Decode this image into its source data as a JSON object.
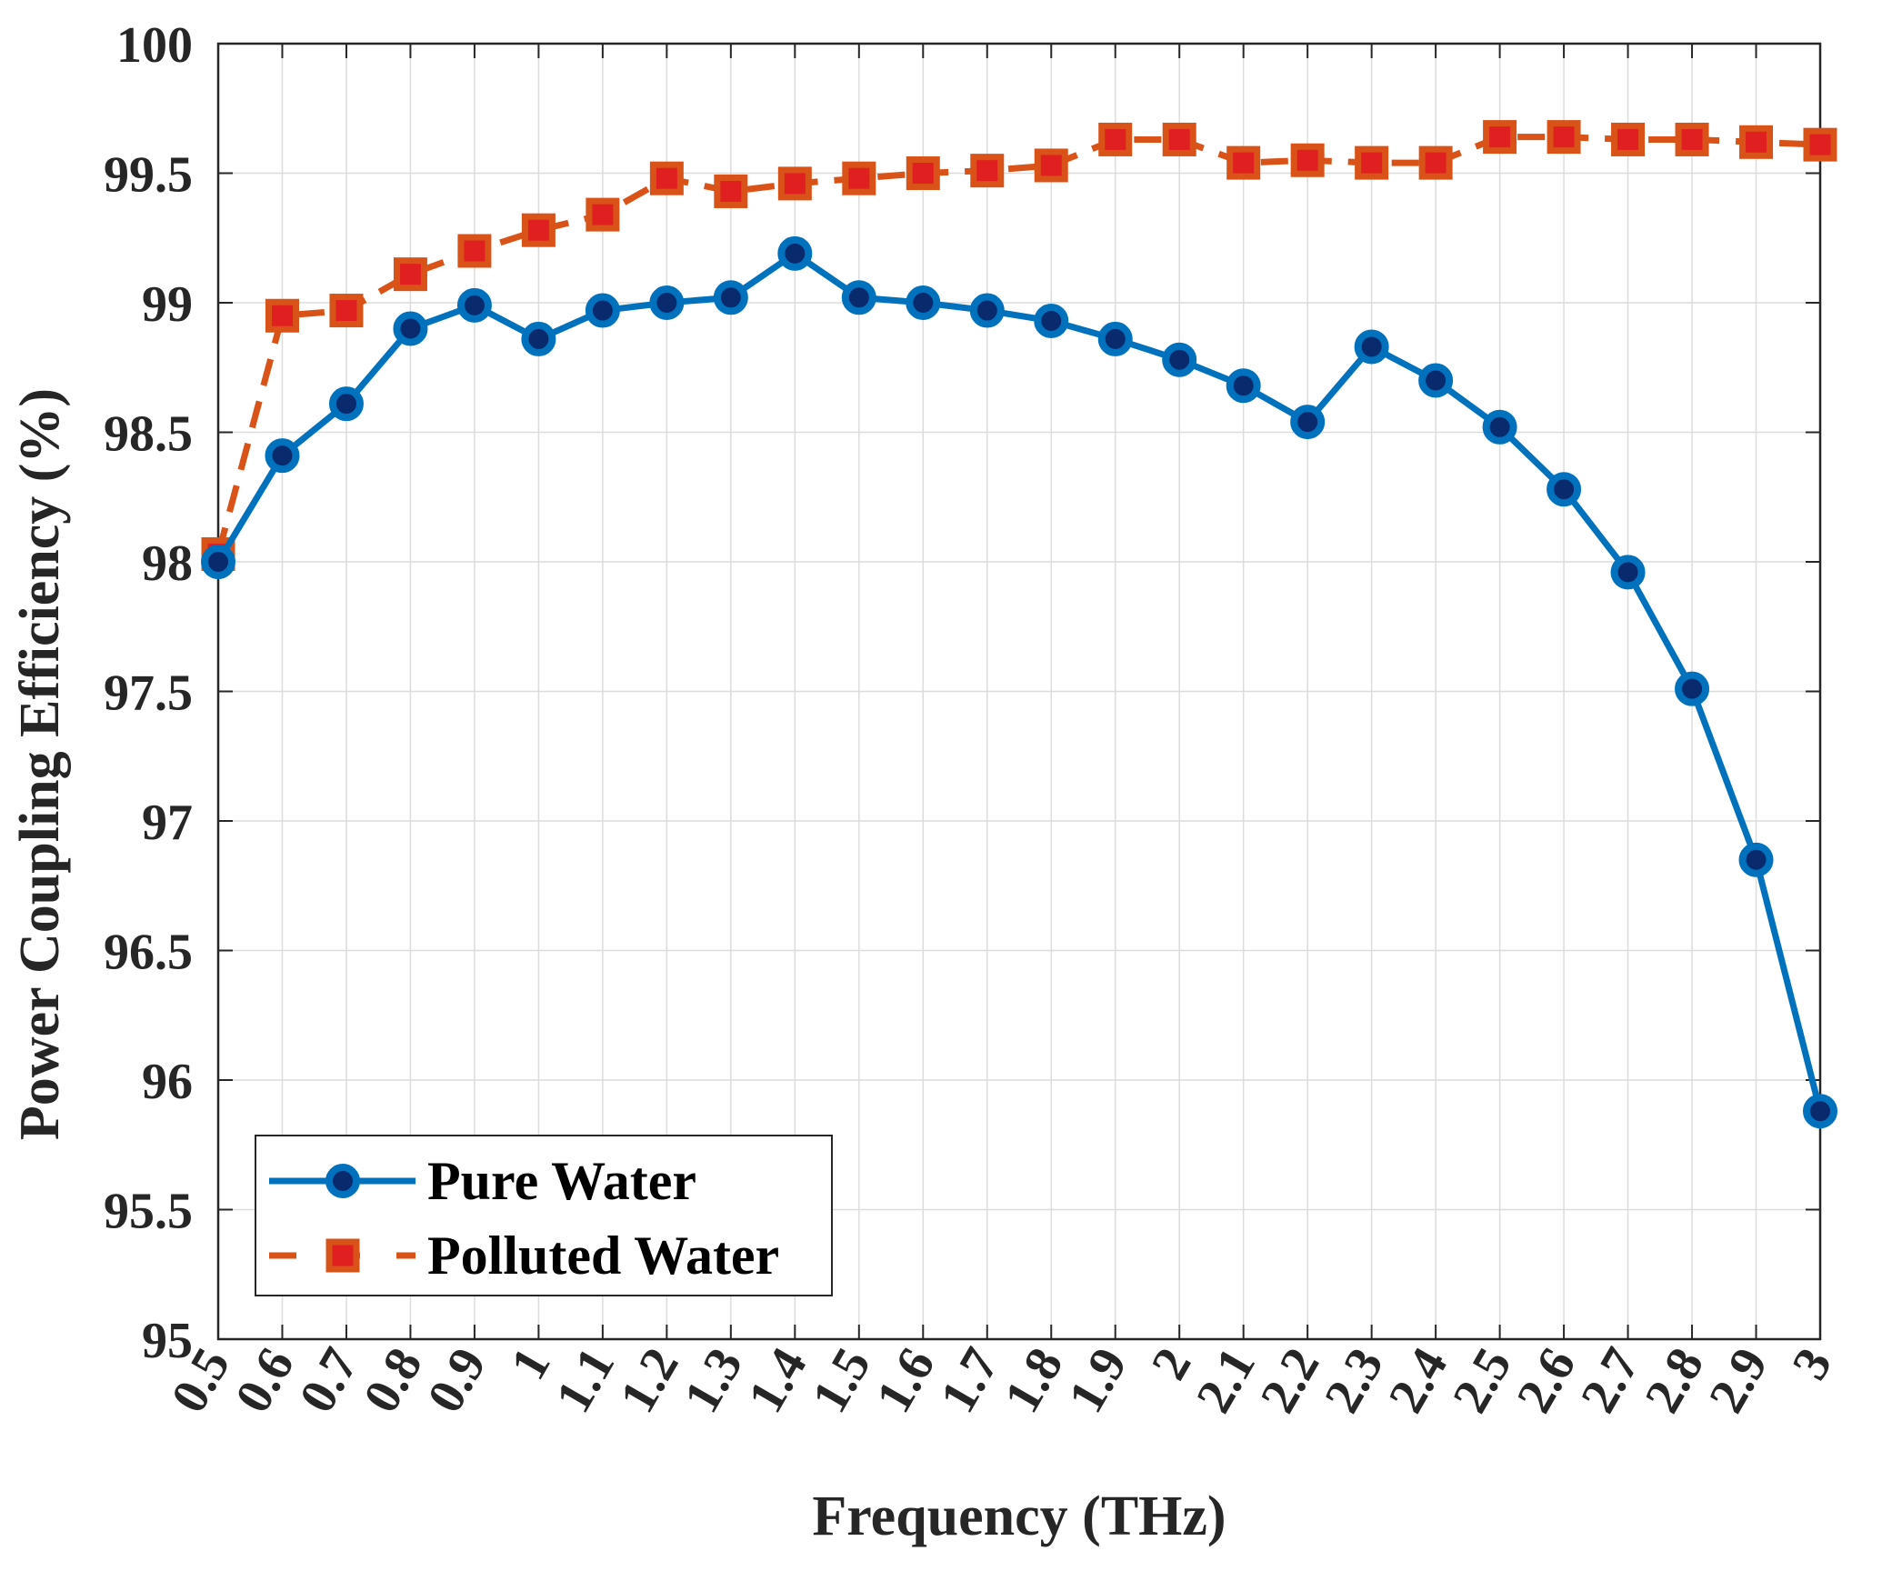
{
  "chart_data": {
    "type": "line",
    "title": "",
    "xlabel": "Frequency (THz)",
    "ylabel": "Power Coupling Efficiency (%)",
    "xlim": [
      0.5,
      3.0
    ],
    "ylim": [
      95,
      100
    ],
    "grid": true,
    "legend_position": "bottom-left",
    "xticks": [
      0.5,
      0.6,
      0.7,
      0.8,
      0.9,
      1.0,
      1.1,
      1.2,
      1.3,
      1.4,
      1.5,
      1.6,
      1.7,
      1.8,
      1.9,
      2.0,
      2.1,
      2.2,
      2.3,
      2.4,
      2.5,
      2.6,
      2.7,
      2.8,
      2.9,
      3.0
    ],
    "xtick_labels": [
      "0.5",
      "0.6",
      "0.7",
      "0.8",
      "0.9",
      "1",
      "1.1",
      "1.2",
      "1.3",
      "1.4",
      "1.5",
      "1.6",
      "1.7",
      "1.8",
      "1.9",
      "2",
      "2.1",
      "2.2",
      "2.3",
      "2.4",
      "2.5",
      "2.6",
      "2.7",
      "2.8",
      "2.9",
      "3"
    ],
    "yticks": [
      95,
      95.5,
      96,
      96.5,
      97,
      97.5,
      98,
      98.5,
      99,
      99.5,
      100
    ],
    "ytick_labels": [
      "95",
      "95.5",
      "96",
      "96.5",
      "97",
      "97.5",
      "98",
      "98.5",
      "99",
      "99.5",
      "100"
    ],
    "x": [
      0.5,
      0.6,
      0.7,
      0.8,
      0.9,
      1.0,
      1.1,
      1.2,
      1.3,
      1.4,
      1.5,
      1.6,
      1.7,
      1.8,
      1.9,
      2.0,
      2.1,
      2.2,
      2.3,
      2.4,
      2.5,
      2.6,
      2.7,
      2.8,
      2.9,
      3.0
    ],
    "series": [
      {
        "name": "Pure Water",
        "color": "#0072BD",
        "line_style": "solid",
        "marker": "circle",
        "values": [
          98.0,
          98.41,
          98.61,
          98.9,
          98.99,
          98.86,
          98.97,
          99.0,
          99.02,
          99.19,
          99.02,
          99.0,
          98.97,
          98.93,
          98.86,
          98.78,
          98.68,
          98.54,
          98.83,
          98.7,
          98.52,
          98.28,
          97.96,
          97.51,
          96.85,
          95.88
        ]
      },
      {
        "name": "Polluted Water",
        "color": "#D95319",
        "marker_face": "#E02020",
        "line_style": "dashed",
        "marker": "square",
        "values": [
          98.03,
          98.95,
          98.97,
          99.11,
          99.2,
          99.28,
          99.34,
          99.48,
          99.43,
          99.46,
          99.48,
          99.5,
          99.51,
          99.53,
          99.63,
          99.63,
          99.54,
          99.55,
          99.54,
          99.54,
          99.64,
          99.64,
          99.63,
          99.63,
          99.62,
          99.61
        ]
      }
    ]
  }
}
